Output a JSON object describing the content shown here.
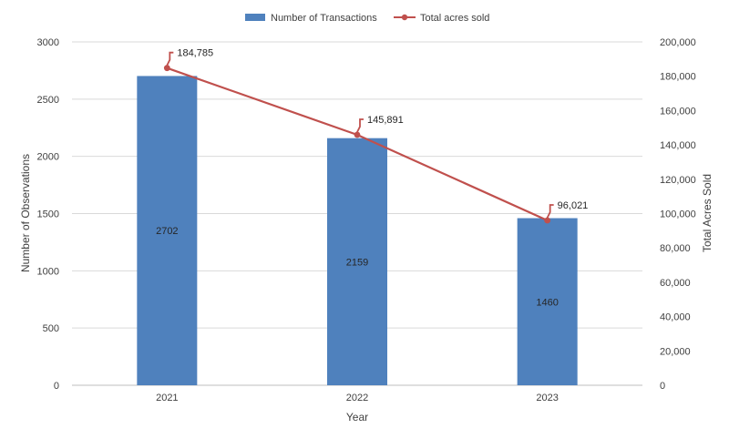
{
  "chart_data": {
    "type": "bar",
    "categories": [
      "2021",
      "2022",
      "2023"
    ],
    "series": [
      {
        "name": "Number of Transactions",
        "type": "bar",
        "axis": "left",
        "color": "#4f81bd",
        "values": [
          2702,
          2159,
          1460
        ]
      },
      {
        "name": "Total acres sold",
        "type": "line",
        "axis": "right",
        "color": "#c0504d",
        "values": [
          184785,
          145891,
          96021
        ]
      }
    ],
    "bar_labels": [
      "2702",
      "2159",
      "1460"
    ],
    "line_labels": [
      "184,785",
      "145,891",
      "96,021"
    ],
    "xlabel": "Year",
    "ylabel": "Number of Observations",
    "y2label": "Total Acres Sold",
    "ylim": [
      0,
      3000
    ],
    "y2lim": [
      0,
      200000
    ],
    "yticks": [
      "0",
      "500",
      "1000",
      "1500",
      "2000",
      "2500",
      "3000"
    ],
    "y2ticks": [
      "0",
      "20,000",
      "40,000",
      "60,000",
      "80,000",
      "100,000",
      "120,000",
      "140,000",
      "160,000",
      "180,000",
      "200,000"
    ],
    "grid": true,
    "legend_position": "top-center"
  }
}
